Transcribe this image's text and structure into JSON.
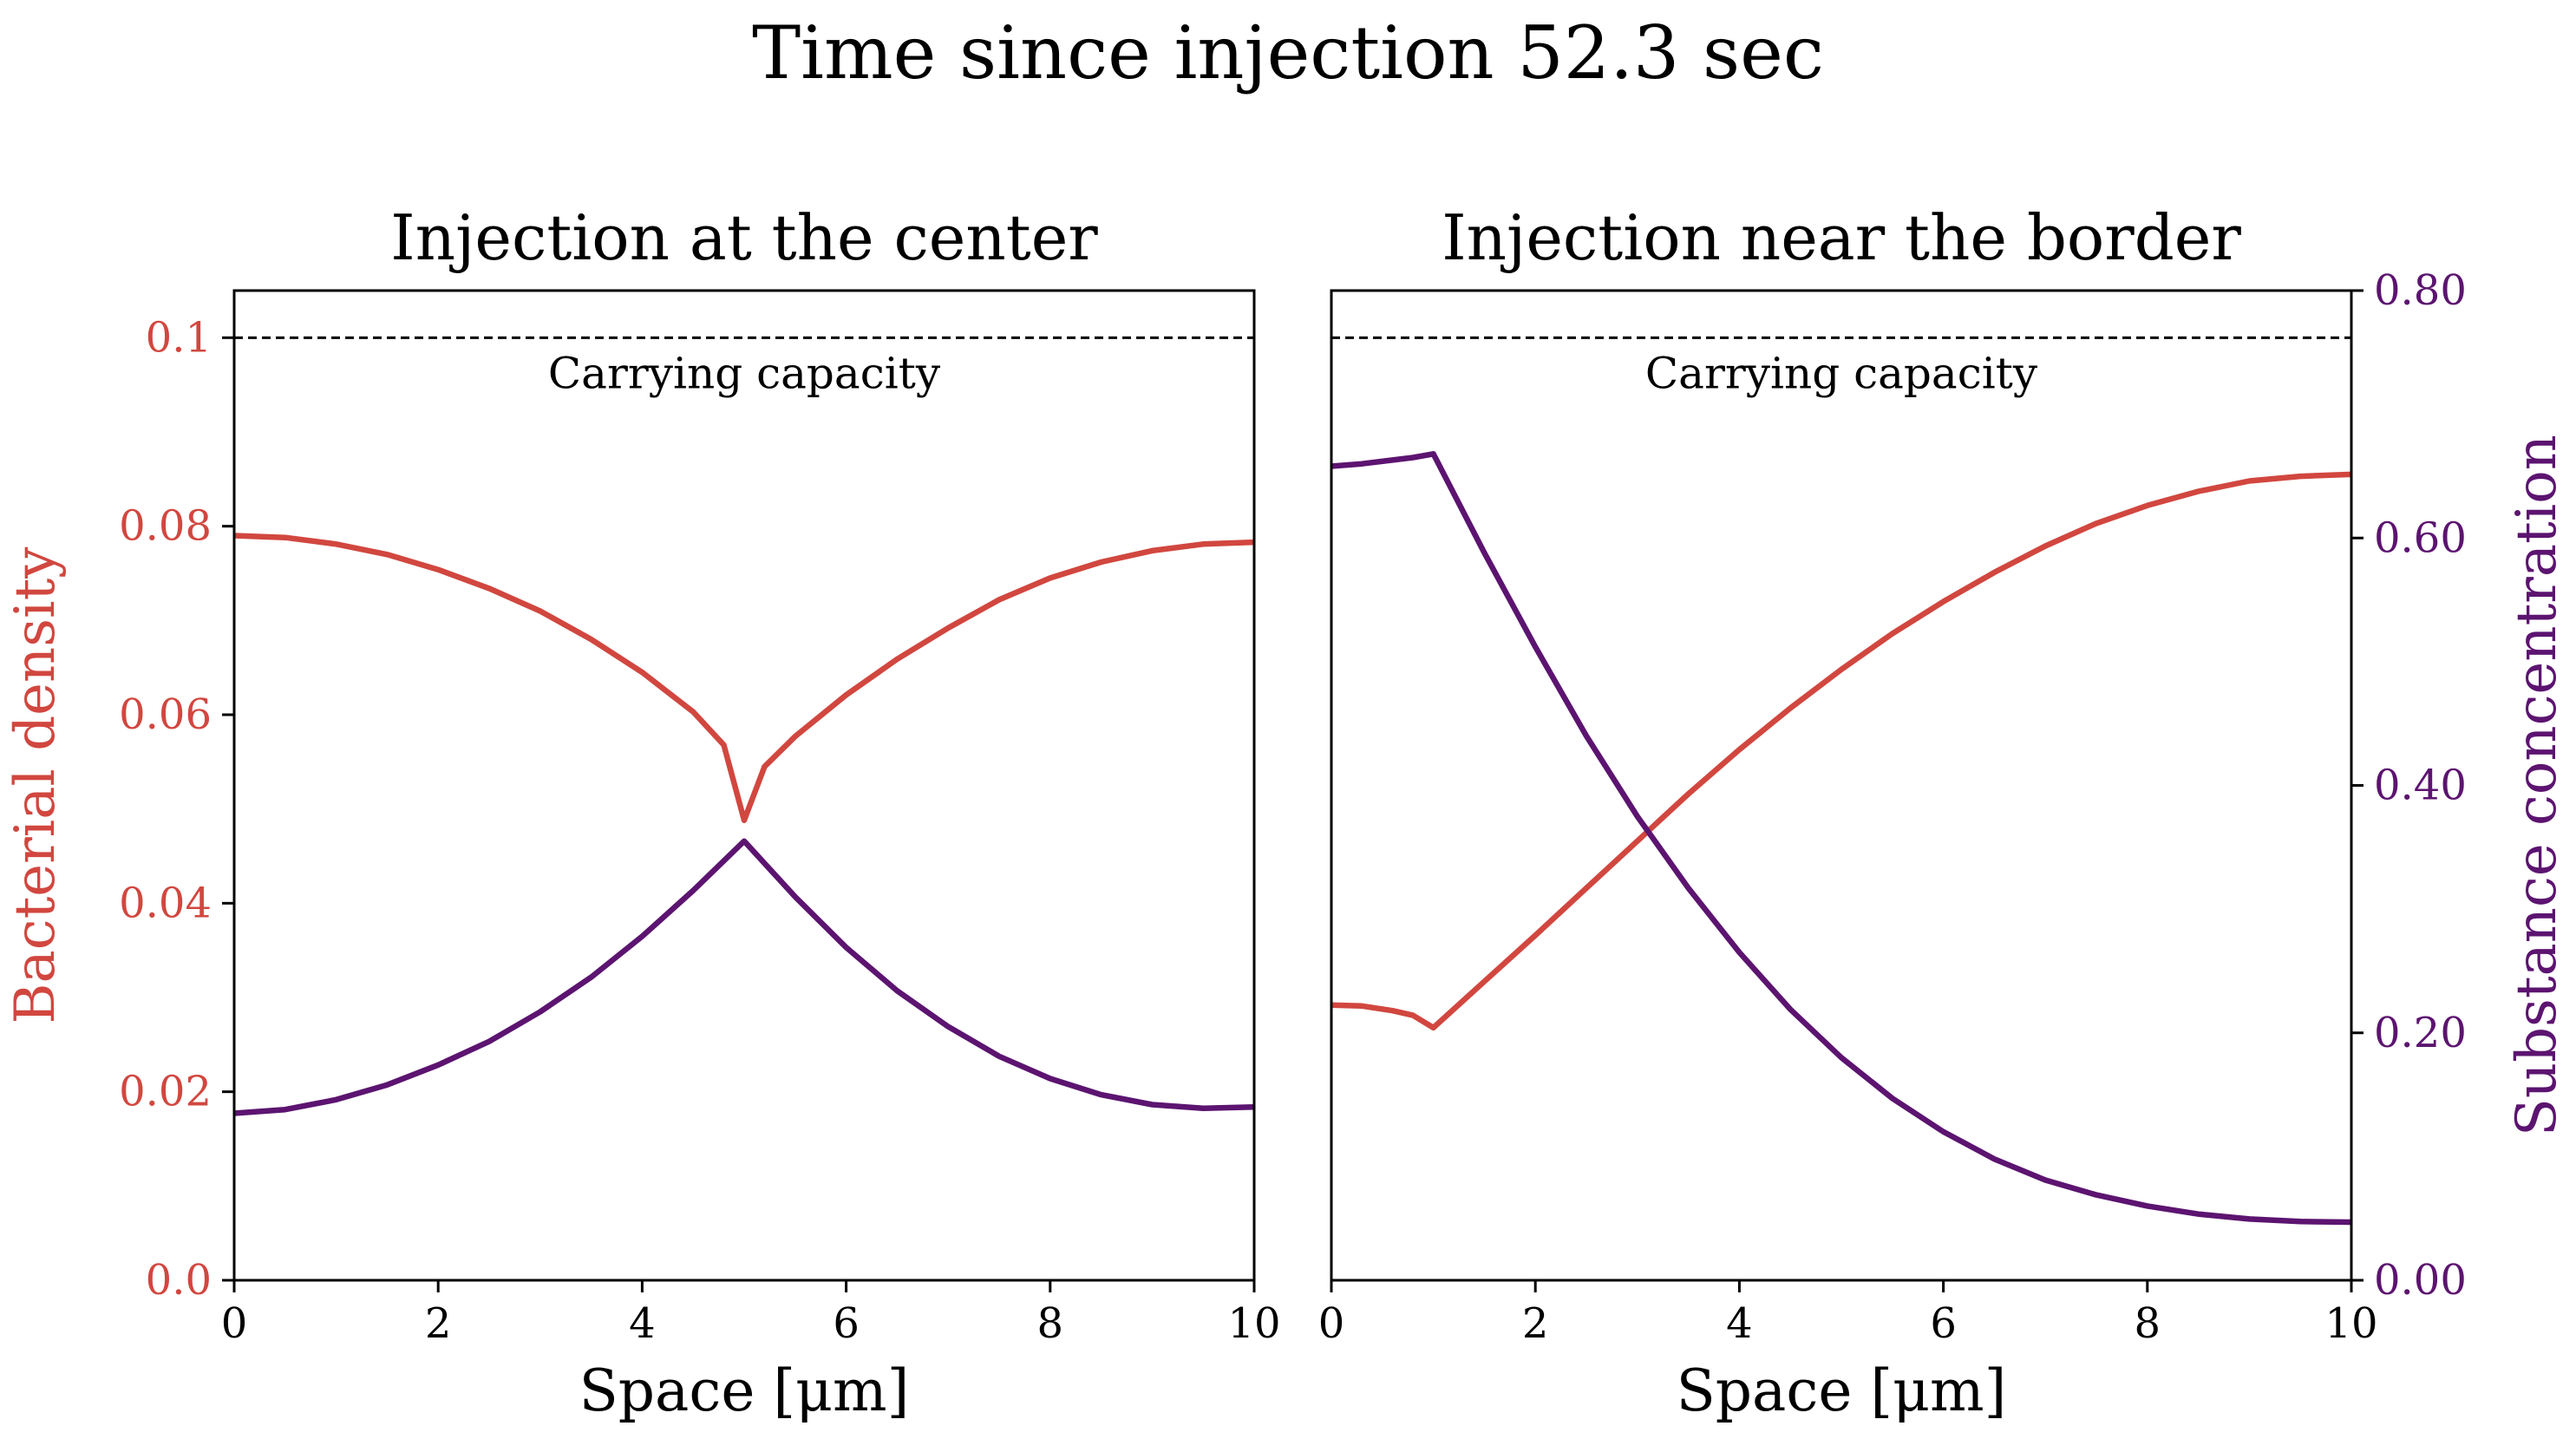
{
  "figure": {
    "suptitle": "Time since injection 52.3 sec",
    "colors": {
      "bacteria": "#d1473f",
      "substance": "#5c1470",
      "axes": "#000000"
    }
  },
  "chart_data": [
    {
      "type": "line",
      "title": "Injection at the center",
      "xlabel": "Space [μm]",
      "ylabel": "Bacterial density",
      "xlim": [
        0,
        10
      ],
      "ylim": [
        0,
        0.105
      ],
      "xticks": [
        0,
        2,
        4,
        6,
        8,
        10
      ],
      "yticks": [
        0.0,
        0.02,
        0.04,
        0.06,
        0.08,
        0.1
      ],
      "ytick_labels": [
        "0.0",
        "0.02",
        "0.04",
        "0.06",
        "0.08",
        "0.1"
      ],
      "grid": false,
      "reference_line": {
        "y": 0.1,
        "label": "Carrying capacity",
        "style": "dashed"
      },
      "series": [
        {
          "key": "bacteria",
          "axis": "left",
          "x": [
            0,
            0.5,
            1,
            1.5,
            2,
            2.5,
            3,
            3.5,
            4,
            4.5,
            4.8,
            5.0,
            5.2,
            5.5,
            6,
            6.5,
            7,
            7.5,
            8,
            8.5,
            9,
            9.5,
            10
          ],
          "values": [
            0.079,
            0.0788,
            0.0781,
            0.077,
            0.0754,
            0.0734,
            0.071,
            0.068,
            0.0645,
            0.0603,
            0.0568,
            0.0488,
            0.0545,
            0.0577,
            0.0621,
            0.0659,
            0.0692,
            0.0722,
            0.0745,
            0.0762,
            0.0774,
            0.0781,
            0.0783
          ]
        },
        {
          "key": "substance",
          "axis": "right",
          "x": [
            0,
            0.5,
            1,
            1.5,
            2,
            2.5,
            3,
            3.5,
            4,
            4.5,
            5.0,
            5.5,
            6,
            6.5,
            7,
            7.5,
            8,
            8.5,
            9,
            9.5,
            10
          ],
          "values": [
            0.135,
            0.138,
            0.146,
            0.158,
            0.174,
            0.193,
            0.217,
            0.245,
            0.278,
            0.315,
            0.355,
            0.31,
            0.269,
            0.234,
            0.205,
            0.181,
            0.163,
            0.15,
            0.142,
            0.139,
            0.14
          ]
        }
      ]
    },
    {
      "type": "line",
      "title": "Injection near the border",
      "xlabel": "Space [μm]",
      "ylabel": "Substance concentration",
      "xlim": [
        0,
        10
      ],
      "ylim": [
        0,
        0.8
      ],
      "xticks": [
        0,
        2,
        4,
        6,
        8,
        10
      ],
      "yticks": [
        0.0,
        0.2,
        0.4,
        0.6,
        0.8
      ],
      "ytick_labels": [
        "0.00",
        "0.20",
        "0.40",
        "0.60",
        "0.80"
      ],
      "grid": false,
      "reference_line": {
        "y": 0.1,
        "label": "Carrying capacity",
        "style": "dashed"
      },
      "series": [
        {
          "key": "bacteria",
          "axis": "left",
          "x": [
            0,
            0.3,
            0.6,
            0.8,
            1.0,
            1.5,
            2,
            2.5,
            3,
            3.5,
            4,
            4.5,
            5,
            5.5,
            6,
            6.5,
            7,
            7.5,
            8,
            8.5,
            9,
            9.5,
            10
          ],
          "values": [
            0.0292,
            0.0291,
            0.0286,
            0.0281,
            0.0268,
            0.0317,
            0.0366,
            0.0416,
            0.0466,
            0.0516,
            0.0563,
            0.0607,
            0.0648,
            0.0686,
            0.072,
            0.0751,
            0.0779,
            0.0803,
            0.0822,
            0.0837,
            0.0848,
            0.0853,
            0.0855
          ]
        },
        {
          "key": "substance",
          "axis": "right",
          "x": [
            0,
            0.3,
            0.6,
            0.8,
            1.0,
            1.5,
            2,
            2.5,
            3,
            3.5,
            4,
            4.5,
            5,
            5.5,
            6,
            6.5,
            7,
            7.5,
            8,
            8.5,
            9,
            9.5,
            10
          ],
          "values": [
            0.658,
            0.66,
            0.663,
            0.665,
            0.668,
            0.588,
            0.512,
            0.44,
            0.375,
            0.317,
            0.265,
            0.219,
            0.18,
            0.147,
            0.12,
            0.098,
            0.081,
            0.069,
            0.06,
            0.0535,
            0.0495,
            0.0475,
            0.047
          ]
        }
      ]
    }
  ]
}
